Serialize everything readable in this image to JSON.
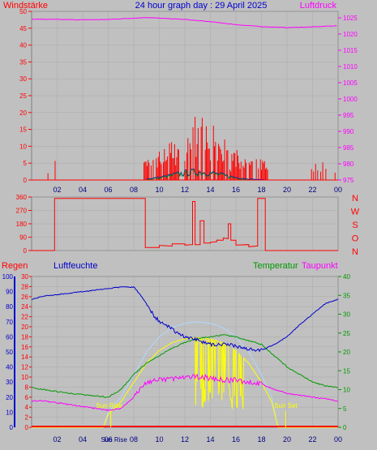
{
  "title": "24 hour graph day : 29 April 2025",
  "labels": {
    "wind": "Windstärke",
    "pressure": "Luftdruck",
    "rain": "Regen",
    "humidity": "Luftfeuchte",
    "temperature": "Temperatur",
    "dewpoint": "Taupunkt",
    "sunrise": "Sun Rise",
    "sunset": "Sun Set",
    "compass": [
      "N",
      "W",
      "S",
      "O",
      "N"
    ]
  },
  "colors": {
    "red": "#ff0000",
    "magenta": "#ff00ff",
    "blue": "#0000cc",
    "green": "#009900",
    "yellow": "#ffff00",
    "lightblue": "#b0d8ff",
    "sun": "#ffff00",
    "panel_bg": "#c0c0c0",
    "grid": "#aaaaaa"
  },
  "x_ticks": [
    "02",
    "04",
    "06",
    "08",
    "10",
    "12",
    "14",
    "16",
    "18",
    "20",
    "22",
    "00"
  ],
  "chart_data": [
    {
      "type": "bar",
      "name": "wind_pressure",
      "y_left_ticks": [
        0,
        5,
        10,
        15,
        20,
        25,
        30,
        35,
        40,
        45,
        50
      ],
      "y_right_ticks": [
        975,
        980,
        985,
        990,
        995,
        1000,
        1005,
        1010,
        1015,
        1020,
        1025
      ],
      "ylim_left": [
        0,
        50
      ],
      "ylim_right": [
        975,
        1027
      ],
      "pressure": [
        [
          0,
          1024.6
        ],
        [
          2,
          1024.5
        ],
        [
          4,
          1024.4
        ],
        [
          6,
          1024.5
        ],
        [
          8,
          1024.9
        ],
        [
          9,
          1025.1
        ],
        [
          10,
          1024.9
        ],
        [
          12,
          1024.5
        ],
        [
          14,
          1023.8
        ],
        [
          16,
          1022.9
        ],
        [
          18,
          1022.3
        ],
        [
          20,
          1022.0
        ],
        [
          22,
          1022.2
        ],
        [
          24,
          1022.6
        ]
      ],
      "wind_notes": "gusts mostly between 09:00 and 18:30, peak about 18 at 13:00"
    },
    {
      "type": "line",
      "name": "wind_direction",
      "y_ticks": [
        0,
        90,
        180,
        270,
        360
      ],
      "ylim": [
        0,
        360
      ],
      "direction": [
        [
          0,
          0
        ],
        [
          1.7,
          0
        ],
        [
          1.8,
          350
        ],
        [
          8.8,
          350
        ],
        [
          8.9,
          20
        ],
        [
          10,
          30
        ],
        [
          11,
          45
        ],
        [
          12,
          40
        ],
        [
          12.6,
          330
        ],
        [
          12.8,
          40
        ],
        [
          13.2,
          200
        ],
        [
          13.5,
          50
        ],
        [
          14,
          60
        ],
        [
          14.5,
          70
        ],
        [
          15,
          80
        ],
        [
          15.4,
          180
        ],
        [
          15.6,
          70
        ],
        [
          16,
          40
        ],
        [
          17,
          30
        ],
        [
          17.6,
          30
        ],
        [
          17.7,
          350
        ],
        [
          18.2,
          350
        ],
        [
          18.3,
          0
        ],
        [
          24,
          0
        ]
      ]
    },
    {
      "type": "line",
      "name": "temp_humidity_rain",
      "rain_ticks": [
        0,
        2,
        4,
        6,
        8,
        10,
        12,
        14,
        16,
        18,
        20,
        22,
        24,
        26,
        28,
        30
      ],
      "humidity_ticks": [
        0,
        10,
        20,
        30,
        40,
        50,
        60,
        70,
        80,
        90,
        100
      ],
      "temperature_ticks": [
        0,
        5,
        10,
        15,
        20,
        25,
        30,
        35,
        40
      ],
      "humidity": [
        [
          0,
          85
        ],
        [
          1,
          87
        ],
        [
          2,
          88
        ],
        [
          3,
          89
        ],
        [
          4,
          90
        ],
        [
          5,
          91
        ],
        [
          6,
          92
        ],
        [
          7,
          93
        ],
        [
          8,
          93
        ],
        [
          8.5,
          88
        ],
        [
          9,
          82
        ],
        [
          9.5,
          75
        ],
        [
          10,
          70
        ],
        [
          11,
          65
        ],
        [
          12,
          60
        ],
        [
          13,
          58
        ],
        [
          14,
          55
        ],
        [
          15,
          55
        ],
        [
          16,
          54
        ],
        [
          17,
          52
        ],
        [
          18,
          51
        ],
        [
          19,
          55
        ],
        [
          20,
          60
        ],
        [
          21,
          68
        ],
        [
          22,
          75
        ],
        [
          23,
          82
        ],
        [
          24,
          85
        ]
      ],
      "temperature": [
        [
          0,
          10.5
        ],
        [
          1,
          10
        ],
        [
          2,
          9.5
        ],
        [
          3,
          9
        ],
        [
          4,
          8.7
        ],
        [
          5,
          8.3
        ],
        [
          6,
          8
        ],
        [
          7,
          10
        ],
        [
          8,
          14
        ],
        [
          9,
          17
        ],
        [
          10,
          19
        ],
        [
          11,
          21
        ],
        [
          12,
          22.5
        ],
        [
          13,
          23.5
        ],
        [
          14,
          24
        ],
        [
          15,
          24.5
        ],
        [
          16,
          24
        ],
        [
          17,
          23
        ],
        [
          18,
          22
        ],
        [
          19,
          19
        ],
        [
          20,
          16
        ],
        [
          21,
          14
        ],
        [
          22,
          12
        ],
        [
          23,
          11
        ],
        [
          24,
          10.5
        ]
      ],
      "dewpoint": [
        [
          0,
          7
        ],
        [
          1,
          7
        ],
        [
          2,
          6.5
        ],
        [
          3,
          6
        ],
        [
          4,
          5.5
        ],
        [
          5,
          5
        ],
        [
          6,
          4.5
        ],
        [
          7,
          5
        ],
        [
          8,
          8
        ],
        [
          9,
          12
        ],
        [
          10,
          12.5
        ],
        [
          11,
          13
        ],
        [
          12,
          13
        ],
        [
          13,
          13.5
        ],
        [
          14,
          13
        ],
        [
          15,
          12.5
        ],
        [
          16,
          12.5
        ],
        [
          17,
          12
        ],
        [
          18,
          11.5
        ],
        [
          19,
          10
        ],
        [
          20,
          9
        ],
        [
          21,
          8.5
        ],
        [
          22,
          8
        ],
        [
          23,
          7.5
        ],
        [
          24,
          7
        ]
      ],
      "solar_pct": [
        [
          0,
          0
        ],
        [
          5.6,
          0
        ],
        [
          6,
          10
        ],
        [
          7,
          20
        ],
        [
          8,
          35
        ],
        [
          9,
          50
        ],
        [
          10,
          60
        ],
        [
          11,
          66
        ],
        [
          12,
          69
        ],
        [
          13,
          70
        ],
        [
          14,
          69
        ],
        [
          15,
          66
        ],
        [
          16,
          60
        ],
        [
          17,
          50
        ],
        [
          18,
          35
        ],
        [
          18.8,
          20
        ],
        [
          19.3,
          0
        ],
        [
          24,
          0
        ]
      ],
      "rain": [
        [
          0,
          0
        ],
        [
          24,
          0
        ]
      ],
      "sunrise_hour": 6.2,
      "sunset_hour": 19.9
    }
  ]
}
